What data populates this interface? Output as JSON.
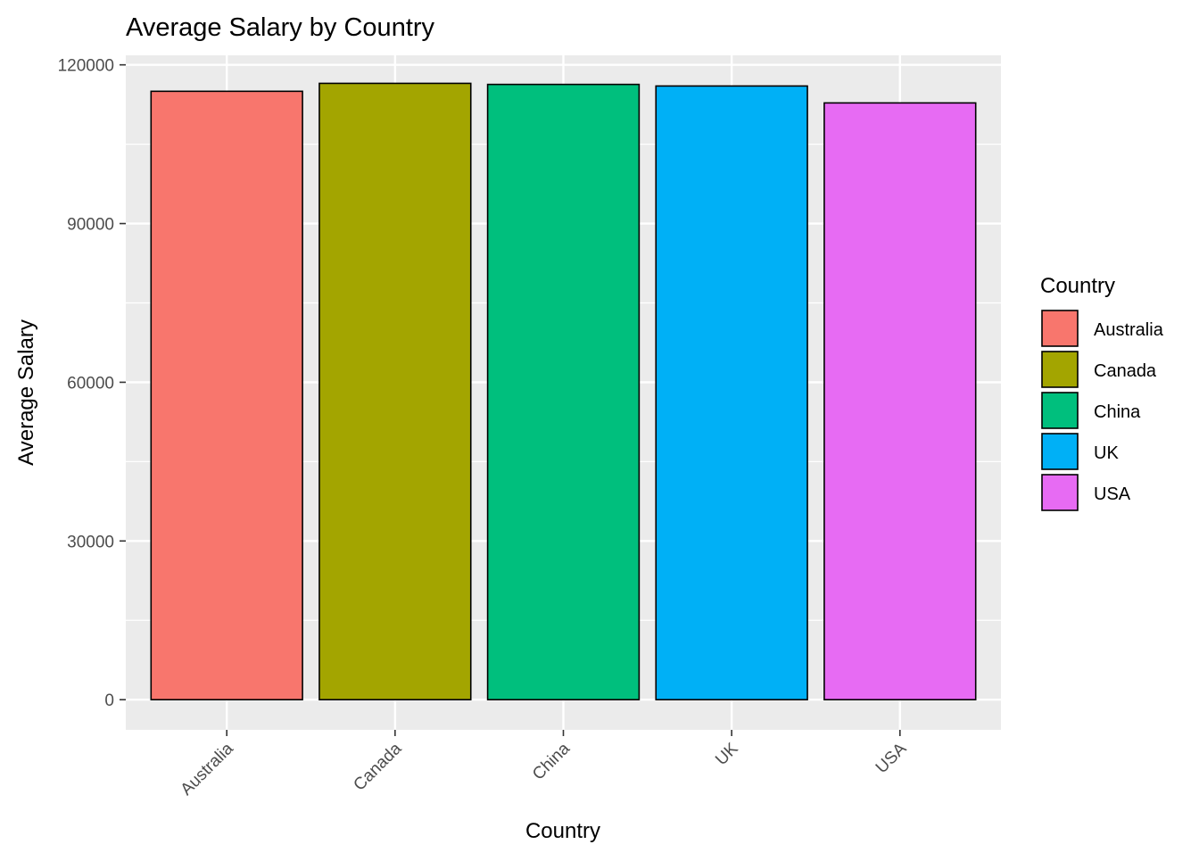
{
  "chart_data": {
    "type": "bar",
    "title": "Average Salary by Country",
    "xlabel": "Country",
    "ylabel": "Average Salary",
    "categories": [
      "Australia",
      "Canada",
      "China",
      "UK",
      "USA"
    ],
    "values": [
      115000,
      116500,
      116300,
      116000,
      112800
    ],
    "ylim": [
      -5700,
      121800
    ],
    "yticks": [
      0,
      30000,
      60000,
      90000,
      120000
    ],
    "ytick_labels": [
      "0",
      "30000",
      "60000",
      "90000",
      "120000"
    ],
    "colors": [
      "#F8766D",
      "#A3A500",
      "#00BF7D",
      "#00B0F6",
      "#E76BF3"
    ],
    "bar_outline_color": "#000000",
    "panel_background": "#EBEBEB",
    "grid": true,
    "legend": {
      "title": "Country",
      "placement": "right",
      "items": [
        "Australia",
        "Canada",
        "China",
        "UK",
        "USA"
      ]
    }
  }
}
